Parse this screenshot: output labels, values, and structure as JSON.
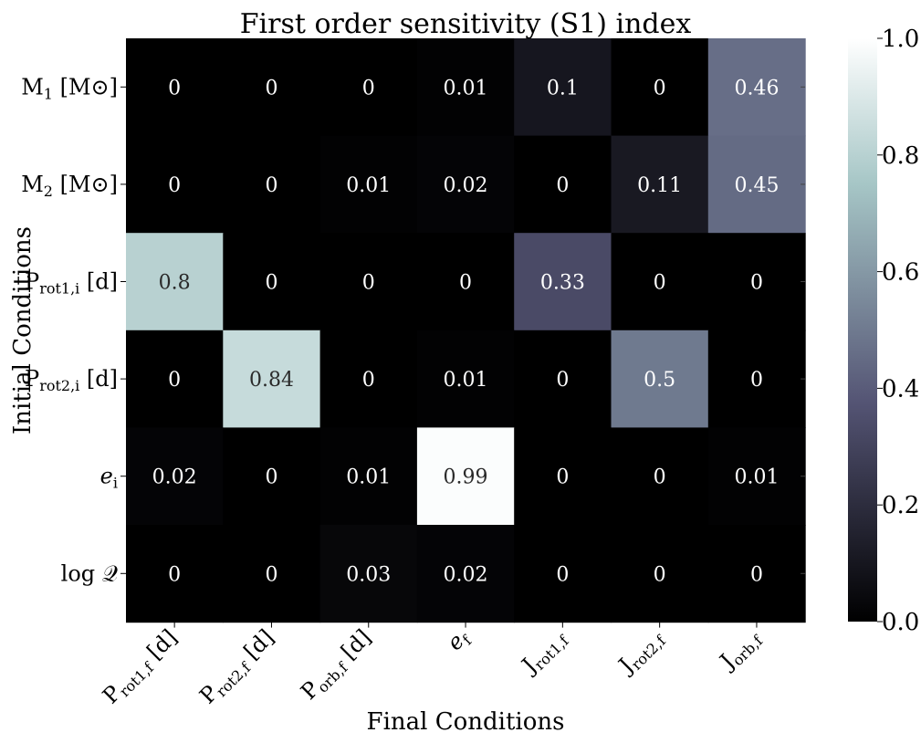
{
  "chart_data": {
    "type": "heatmap",
    "title": "First order sensitivity (S1) index",
    "xlabel": "Final Conditions",
    "ylabel": "Initial Conditions",
    "x_categories": [
      {
        "base": "P",
        "sub": "rot1,f",
        "suffix": " [d]"
      },
      {
        "base": "P",
        "sub": "rot2,f",
        "suffix": " [d]"
      },
      {
        "base": "P",
        "sub": "orb,f",
        "suffix": " [d]"
      },
      {
        "base": "e",
        "sub": "f",
        "suffix": "",
        "italic": true
      },
      {
        "base": "J",
        "sub": "rot1,f",
        "suffix": ""
      },
      {
        "base": "J",
        "sub": "rot2,f",
        "suffix": ""
      },
      {
        "base": "J",
        "sub": "orb,f",
        "suffix": ""
      }
    ],
    "y_categories": [
      {
        "base": "M",
        "sub": "1",
        "suffix": " [M⊙]"
      },
      {
        "base": "M",
        "sub": "2",
        "suffix": " [M⊙]"
      },
      {
        "base": "P",
        "sub": "rot1,i",
        "suffix": " [d]"
      },
      {
        "base": "P",
        "sub": "rot2,i",
        "suffix": " [d]"
      },
      {
        "base": "e",
        "sub": "i",
        "suffix": "",
        "italic": true
      },
      {
        "base": "log ",
        "sub": "",
        "suffix": "𝒬"
      }
    ],
    "values": [
      [
        0,
        0,
        0,
        0.01,
        0.1,
        0,
        0.46
      ],
      [
        0,
        0,
        0.01,
        0.02,
        0,
        0.11,
        0.45
      ],
      [
        0.8,
        0,
        0,
        0,
        0.33,
        0,
        0
      ],
      [
        0,
        0.84,
        0,
        0.01,
        0,
        0.5,
        0
      ],
      [
        0.02,
        0,
        0.01,
        0.99,
        0,
        0,
        0.01
      ],
      [
        0,
        0,
        0.03,
        0.02,
        0,
        0,
        0
      ]
    ],
    "annotations": [
      [
        "0",
        "0",
        "0",
        "0.01",
        "0.1",
        "0",
        "0.46"
      ],
      [
        "0",
        "0",
        "0.01",
        "0.02",
        "0",
        "0.11",
        "0.45"
      ],
      [
        "0.8",
        "0",
        "0",
        "0",
        "0.33",
        "0",
        "0"
      ],
      [
        "0",
        "0.84",
        "0",
        "0.01",
        "0",
        "0.5",
        "0"
      ],
      [
        "0.02",
        "0",
        "0.01",
        "0.99",
        "0",
        "0",
        "0.01"
      ],
      [
        "0",
        "0",
        "0.03",
        "0.02",
        "0",
        "0",
        "0"
      ]
    ],
    "colorbar": {
      "range": [
        0,
        1
      ],
      "ticks": [
        0,
        0.2,
        0.4,
        0.6,
        0.8,
        1
      ],
      "tick_labels": [
        "0.0",
        "0.2",
        "0.4",
        "0.6",
        "0.8",
        "1.0"
      ],
      "colormap": "bone"
    },
    "grid": false
  }
}
